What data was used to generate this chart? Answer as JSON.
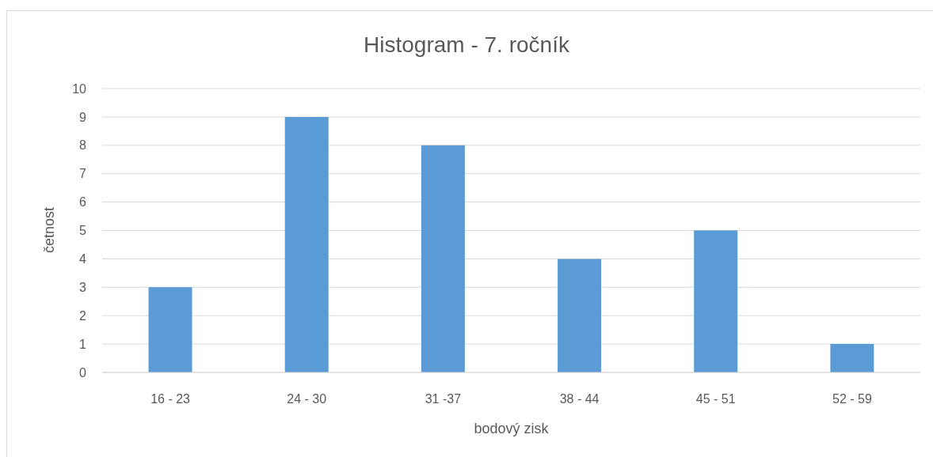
{
  "chart_data": {
    "type": "bar",
    "title": "Histogram - 7. ročník",
    "xlabel": "bodový zisk",
    "ylabel": "četnost",
    "categories": [
      "16 - 23",
      "24 - 30",
      "31 -37",
      "38 - 44",
      "45 - 51",
      "52 - 59"
    ],
    "values": [
      3,
      9,
      8,
      4,
      5,
      1
    ],
    "color": "#5b9bd5",
    "ylim": [
      0,
      10
    ],
    "yticks": [
      0,
      1,
      2,
      3,
      4,
      5,
      6,
      7,
      8,
      9,
      10
    ],
    "grid": "y"
  }
}
